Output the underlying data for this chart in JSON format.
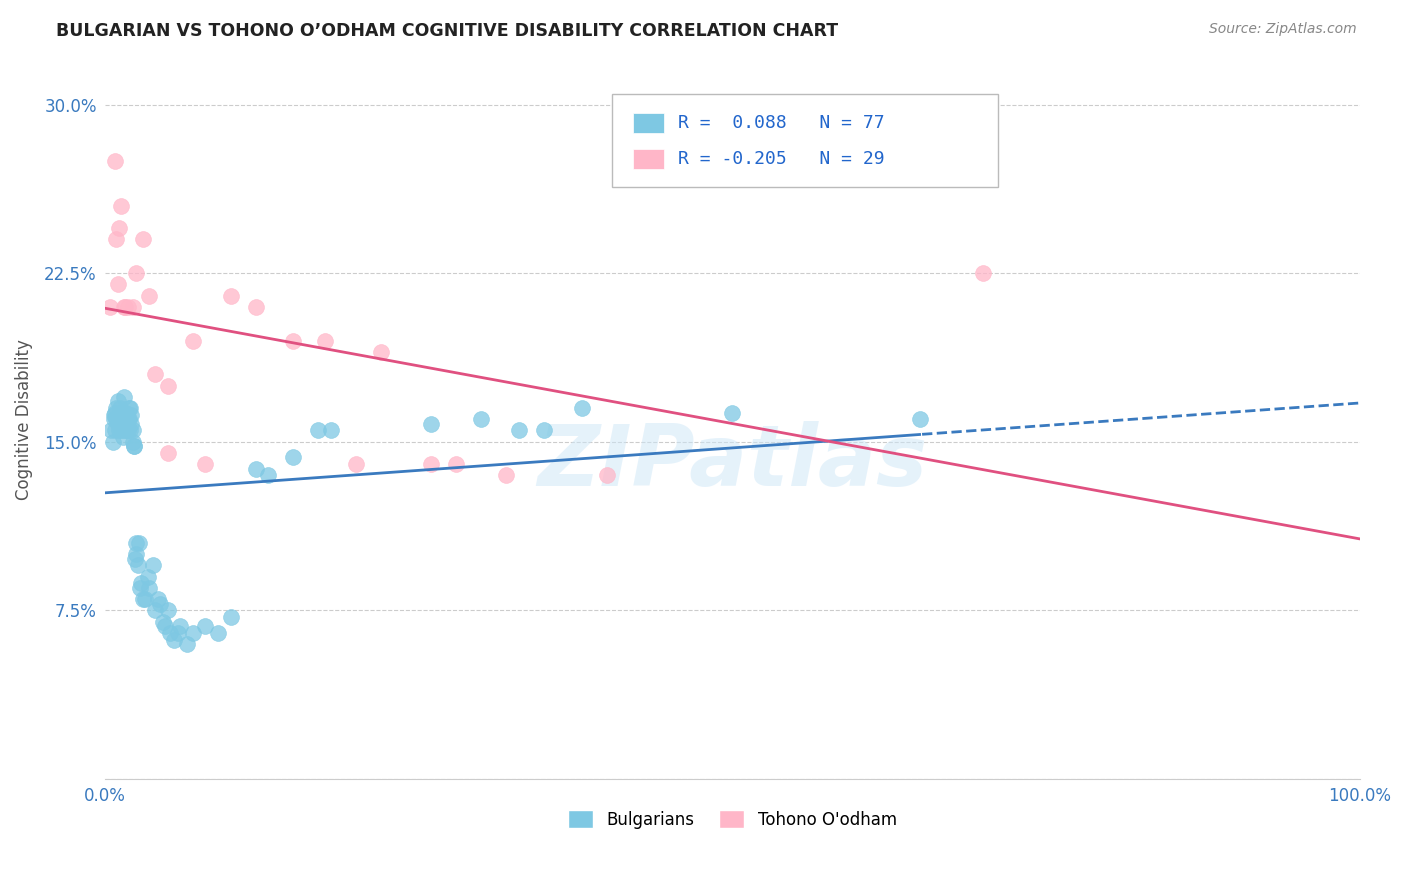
{
  "title": "BULGARIAN VS TOHONO O’ODHAM COGNITIVE DISABILITY CORRELATION CHART",
  "source": "Source: ZipAtlas.com",
  "ylabel": "Cognitive Disability",
  "xlim": [
    0.0,
    1.0
  ],
  "ylim": [
    0.0,
    0.32
  ],
  "x_ticks": [
    0.0,
    0.1,
    0.2,
    0.3,
    0.4,
    0.5,
    0.6,
    0.7,
    0.8,
    0.9,
    1.0
  ],
  "x_tick_labels": [
    "0.0%",
    "",
    "",
    "",
    "",
    "",
    "",
    "",
    "",
    "",
    "100.0%"
  ],
  "y_ticks": [
    0.0,
    0.075,
    0.15,
    0.225,
    0.3
  ],
  "y_tick_labels": [
    "",
    "7.5%",
    "15.0%",
    "22.5%",
    "30.0%"
  ],
  "color_blue": "#7ec8e3",
  "color_pink": "#ffb6c8",
  "color_blue_line": "#3a7abf",
  "color_pink_line": "#e05080",
  "watermark": "ZIPatlas",
  "bulgarians_x": [
    0.005,
    0.006,
    0.007,
    0.007,
    0.008,
    0.008,
    0.009,
    0.009,
    0.01,
    0.01,
    0.011,
    0.011,
    0.012,
    0.012,
    0.013,
    0.013,
    0.013,
    0.014,
    0.014,
    0.015,
    0.015,
    0.015,
    0.016,
    0.016,
    0.017,
    0.017,
    0.018,
    0.018,
    0.019,
    0.019,
    0.02,
    0.02,
    0.021,
    0.021,
    0.022,
    0.022,
    0.023,
    0.023,
    0.024,
    0.025,
    0.025,
    0.026,
    0.027,
    0.028,
    0.029,
    0.03,
    0.032,
    0.034,
    0.035,
    0.038,
    0.04,
    0.042,
    0.044,
    0.046,
    0.048,
    0.05,
    0.052,
    0.055,
    0.058,
    0.06,
    0.065,
    0.07,
    0.08,
    0.09,
    0.1,
    0.12,
    0.13,
    0.15,
    0.17,
    0.18,
    0.26,
    0.3,
    0.33,
    0.35,
    0.38,
    0.5,
    0.65
  ],
  "bulgarians_y": [
    0.155,
    0.15,
    0.16,
    0.162,
    0.155,
    0.163,
    0.165,
    0.16,
    0.168,
    0.158,
    0.155,
    0.162,
    0.165,
    0.16,
    0.158,
    0.155,
    0.163,
    0.16,
    0.152,
    0.162,
    0.17,
    0.155,
    0.16,
    0.158,
    0.155,
    0.163,
    0.16,
    0.155,
    0.165,
    0.16,
    0.165,
    0.155,
    0.162,
    0.158,
    0.155,
    0.15,
    0.148,
    0.148,
    0.098,
    0.105,
    0.1,
    0.095,
    0.105,
    0.085,
    0.087,
    0.08,
    0.08,
    0.09,
    0.085,
    0.095,
    0.075,
    0.08,
    0.078,
    0.07,
    0.068,
    0.075,
    0.065,
    0.062,
    0.065,
    0.068,
    0.06,
    0.065,
    0.068,
    0.065,
    0.072,
    0.138,
    0.135,
    0.143,
    0.155,
    0.155,
    0.158,
    0.16,
    0.155,
    0.155,
    0.165,
    0.163,
    0.16
  ],
  "tohono_x": [
    0.004,
    0.008,
    0.009,
    0.01,
    0.011,
    0.013,
    0.015,
    0.016,
    0.018,
    0.022,
    0.025,
    0.03,
    0.035,
    0.04,
    0.05,
    0.05,
    0.07,
    0.08,
    0.1,
    0.12,
    0.15,
    0.175,
    0.2,
    0.22,
    0.26,
    0.28,
    0.32,
    0.4,
    0.7
  ],
  "tohono_y": [
    0.21,
    0.275,
    0.24,
    0.22,
    0.245,
    0.255,
    0.21,
    0.21,
    0.21,
    0.21,
    0.225,
    0.24,
    0.215,
    0.18,
    0.175,
    0.145,
    0.195,
    0.14,
    0.215,
    0.21,
    0.195,
    0.195,
    0.14,
    0.19,
    0.14,
    0.14,
    0.135,
    0.135,
    0.225
  ]
}
